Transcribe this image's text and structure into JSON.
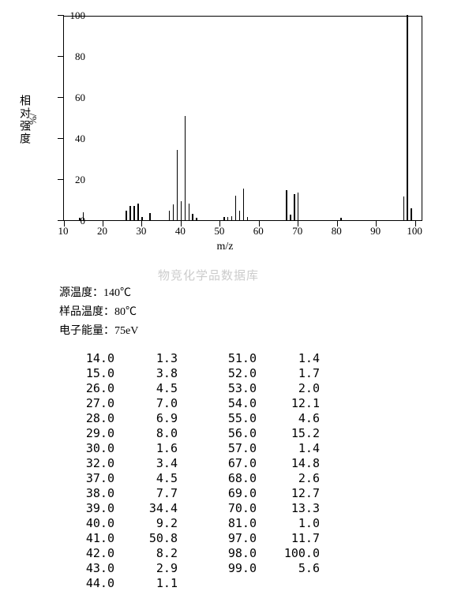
{
  "chart": {
    "type": "bar",
    "xlim": [
      10,
      102
    ],
    "ylim": [
      0,
      100
    ],
    "xticks": [
      10,
      20,
      30,
      40,
      50,
      60,
      70,
      80,
      90,
      100
    ],
    "yticks": [
      0,
      20,
      40,
      60,
      80,
      100
    ],
    "xlabel": "m/z",
    "ylabel_cn": "相对强度",
    "ylabel_sym": "%/",
    "bar_color": "#000000",
    "axis_color": "#000000",
    "background_color": "#ffffff",
    "label_fontsize": 13,
    "bar_width": 1.5,
    "peaks": [
      {
        "mz": 14.0,
        "intensity": 1.3
      },
      {
        "mz": 15.0,
        "intensity": 3.8
      },
      {
        "mz": 26.0,
        "intensity": 4.5
      },
      {
        "mz": 27.0,
        "intensity": 7.0
      },
      {
        "mz": 28.0,
        "intensity": 6.9
      },
      {
        "mz": 29.0,
        "intensity": 8.0
      },
      {
        "mz": 30.0,
        "intensity": 1.6
      },
      {
        "mz": 32.0,
        "intensity": 3.4
      },
      {
        "mz": 37.0,
        "intensity": 4.5
      },
      {
        "mz": 38.0,
        "intensity": 7.7
      },
      {
        "mz": 39.0,
        "intensity": 34.4
      },
      {
        "mz": 40.0,
        "intensity": 9.2
      },
      {
        "mz": 41.0,
        "intensity": 50.8
      },
      {
        "mz": 42.0,
        "intensity": 8.2
      },
      {
        "mz": 43.0,
        "intensity": 2.9
      },
      {
        "mz": 44.0,
        "intensity": 1.1
      },
      {
        "mz": 51.0,
        "intensity": 1.4
      },
      {
        "mz": 52.0,
        "intensity": 1.7
      },
      {
        "mz": 53.0,
        "intensity": 2.0
      },
      {
        "mz": 54.0,
        "intensity": 12.1
      },
      {
        "mz": 55.0,
        "intensity": 4.6
      },
      {
        "mz": 56.0,
        "intensity": 15.2
      },
      {
        "mz": 57.0,
        "intensity": 1.4
      },
      {
        "mz": 67.0,
        "intensity": 14.8
      },
      {
        "mz": 68.0,
        "intensity": 2.6
      },
      {
        "mz": 69.0,
        "intensity": 12.7
      },
      {
        "mz": 70.0,
        "intensity": 13.3
      },
      {
        "mz": 81.0,
        "intensity": 1.0
      },
      {
        "mz": 97.0,
        "intensity": 11.7
      },
      {
        "mz": 98.0,
        "intensity": 100.0
      },
      {
        "mz": 99.0,
        "intensity": 5.6
      }
    ]
  },
  "watermark": "物竞化学品数据库",
  "params": {
    "source_temp_label": "源温度：",
    "source_temp_value": "140℃",
    "sample_temp_label": "样品温度：",
    "sample_temp_value": "80℃",
    "electron_energy_label": "电子能量：",
    "electron_energy_value": "75eV"
  },
  "table": {
    "left_rows": [
      [
        "14.0",
        "1.3"
      ],
      [
        "15.0",
        "3.8"
      ],
      [
        "26.0",
        "4.5"
      ],
      [
        "27.0",
        "7.0"
      ],
      [
        "28.0",
        "6.9"
      ],
      [
        "29.0",
        "8.0"
      ],
      [
        "30.0",
        "1.6"
      ],
      [
        "32.0",
        "3.4"
      ],
      [
        "37.0",
        "4.5"
      ],
      [
        "38.0",
        "7.7"
      ],
      [
        "39.0",
        "34.4"
      ],
      [
        "40.0",
        "9.2"
      ],
      [
        "41.0",
        "50.8"
      ],
      [
        "42.0",
        "8.2"
      ],
      [
        "43.0",
        "2.9"
      ],
      [
        "44.0",
        "1.1"
      ]
    ],
    "right_rows": [
      [
        "51.0",
        "1.4"
      ],
      [
        "52.0",
        "1.7"
      ],
      [
        "53.0",
        "2.0"
      ],
      [
        "54.0",
        "12.1"
      ],
      [
        "55.0",
        "4.6"
      ],
      [
        "56.0",
        "15.2"
      ],
      [
        "57.0",
        "1.4"
      ],
      [
        "67.0",
        "14.8"
      ],
      [
        "68.0",
        "2.6"
      ],
      [
        "69.0",
        "12.7"
      ],
      [
        "70.0",
        "13.3"
      ],
      [
        "81.0",
        "1.0"
      ],
      [
        "97.0",
        "11.7"
      ],
      [
        "98.0",
        "100.0"
      ],
      [
        "99.0",
        "5.6"
      ]
    ]
  }
}
